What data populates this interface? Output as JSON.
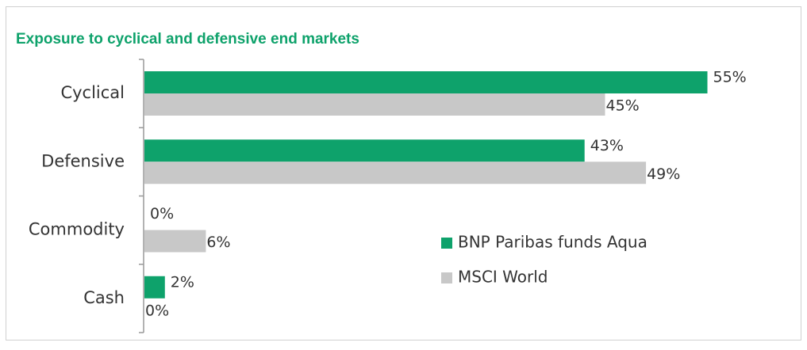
{
  "chart_data": {
    "type": "bar",
    "orientation": "horizontal",
    "title": "Exposure to cyclical and defensive end markets",
    "categories": [
      "Cyclical",
      "Defensive",
      "Commodity",
      "Cash"
    ],
    "series": [
      {
        "name": "BNP Paribas funds Aqua",
        "color": "#0ea26b",
        "values": [
          55,
          43,
          0,
          2
        ],
        "value_labels": [
          "55%",
          "43%",
          "0%",
          "2%"
        ]
      },
      {
        "name": "MSCI World",
        "color": "#c8c8c8",
        "values": [
          45,
          49,
          6,
          0
        ],
        "value_labels": [
          "45%",
          "49%",
          "6%",
          "0%"
        ]
      }
    ],
    "legend": "lower-right"
  }
}
